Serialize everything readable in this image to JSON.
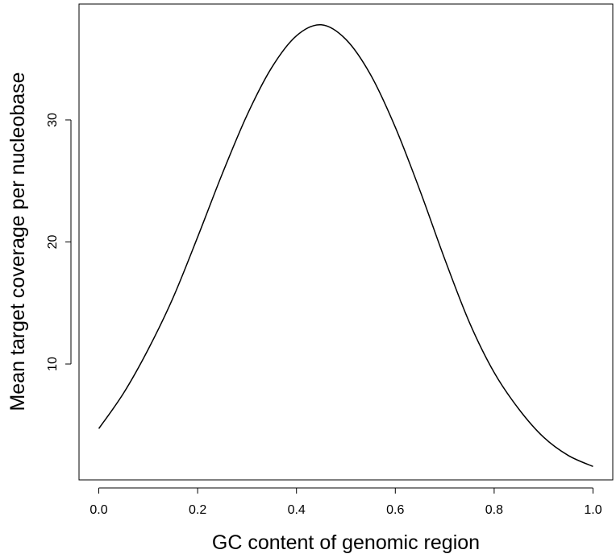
{
  "chart_data": {
    "type": "line",
    "title": "",
    "xlabel": "GC content of genomic region",
    "ylabel": "Mean target coverage per nucleobase",
    "xlim": [
      -0.04,
      1.04
    ],
    "ylim": [
      0.5,
      39.5
    ],
    "x_ticks": [
      0.0,
      0.2,
      0.4,
      0.6,
      0.8,
      1.0
    ],
    "x_tick_labels": [
      "0.0",
      "0.2",
      "0.4",
      "0.6",
      "0.8",
      "1.0"
    ],
    "y_ticks": [
      10,
      20,
      30
    ],
    "y_tick_labels": [
      "10",
      "20",
      "30"
    ],
    "grid": false,
    "legend": "none",
    "series": [
      {
        "x": [
          0.0,
          0.05,
          0.1,
          0.15,
          0.2,
          0.25,
          0.3,
          0.35,
          0.4,
          0.45,
          0.5,
          0.55,
          0.6,
          0.65,
          0.7,
          0.75,
          0.8,
          0.85,
          0.9,
          0.95,
          1.0
        ],
        "values": [
          4.7,
          7.6,
          11.2,
          15.4,
          20.4,
          25.6,
          30.4,
          34.3,
          36.9,
          37.8,
          36.6,
          33.7,
          29.4,
          24.2,
          18.6,
          13.4,
          9.3,
          6.3,
          4.0,
          2.5,
          1.6
        ]
      }
    ],
    "colors": {
      "line": "#000000",
      "axes": "#000000",
      "background": "#ffffff"
    }
  }
}
